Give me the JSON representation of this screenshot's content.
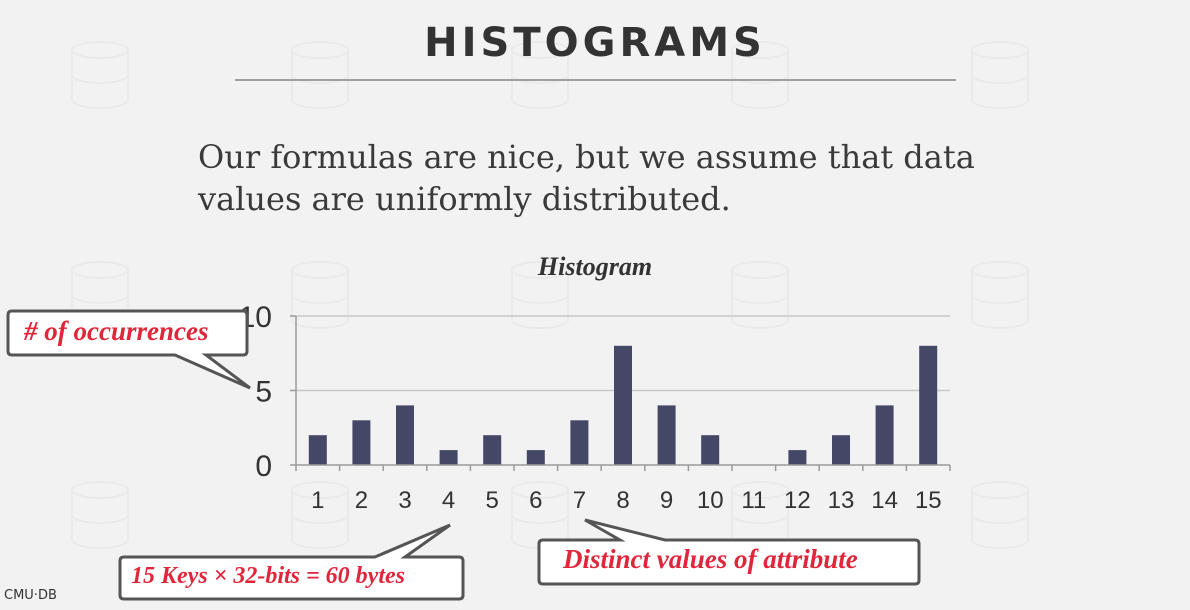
{
  "slide": {
    "title": "HISTOGRAMS",
    "body_lines": [
      "Our formulas are nice, but we assume that data",
      "values are uniformly distributed."
    ],
    "footer_logo": "CMU·DB"
  },
  "callouts": {
    "y_axis": "# of occurrences",
    "keys": "15 Keys × 32-bits = 60 bytes",
    "x_axis": "Distinct values of attribute"
  },
  "colors": {
    "bar": "#454766",
    "callout_text": "#e0263a",
    "callout_border": "#555555",
    "axis": "#c8c8c8"
  },
  "chart_data": {
    "type": "bar",
    "title": "Histogram",
    "categories": [
      "1",
      "2",
      "3",
      "4",
      "5",
      "6",
      "7",
      "8",
      "9",
      "10",
      "11",
      "12",
      "13",
      "14",
      "15"
    ],
    "values": [
      2,
      3,
      4,
      1,
      2,
      1,
      3,
      8,
      4,
      2,
      0,
      1,
      2,
      4,
      8
    ],
    "ylim": [
      0,
      10
    ],
    "yticks": [
      0,
      5,
      10
    ],
    "grid": true
  }
}
